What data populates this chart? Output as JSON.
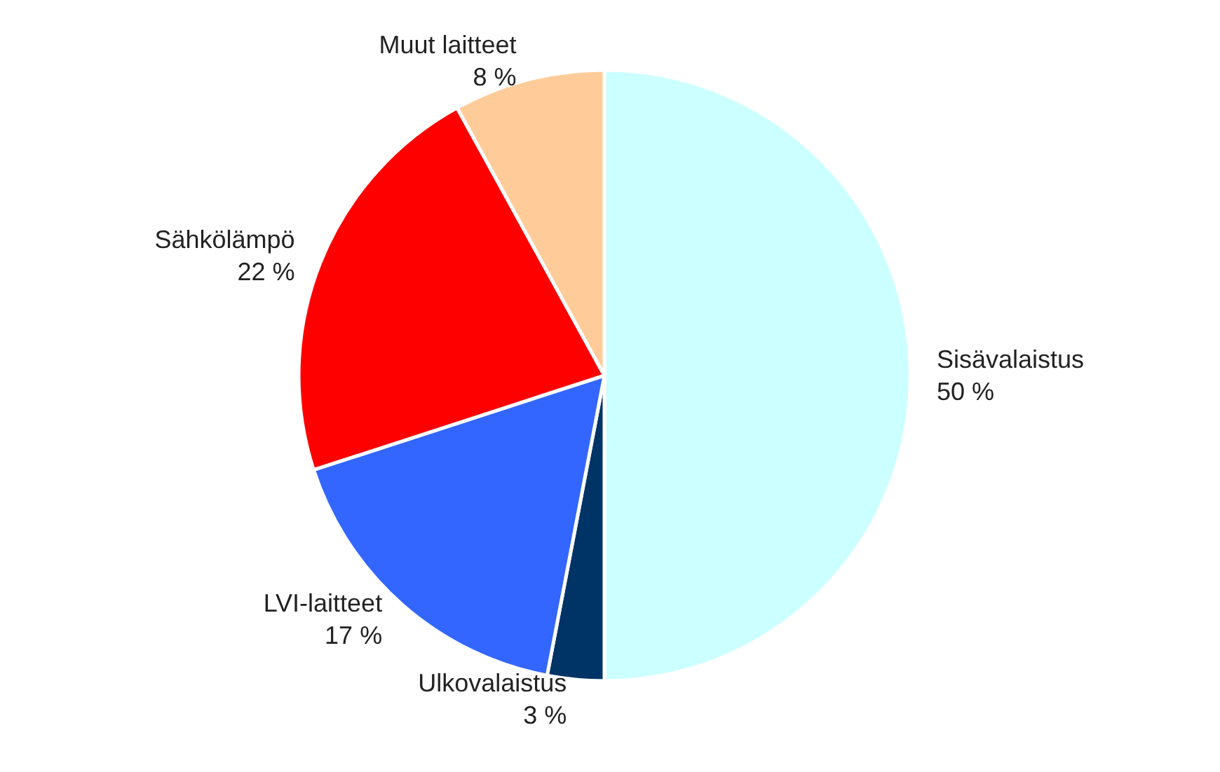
{
  "chart_data": {
    "type": "pie",
    "categories": [
      "Sisävalaistus",
      "Ulkovalaistus",
      "LVI-laitteet",
      "Sähkölämpö",
      "Muut laitteet"
    ],
    "values": [
      50,
      3,
      17,
      22,
      8
    ],
    "value_labels": [
      "50 %",
      "3 %",
      "17 %",
      "22 %",
      "8 %"
    ],
    "colors": [
      "#ccffff",
      "#003366",
      "#3366ff",
      "#ff0000",
      "#ffcc99"
    ]
  }
}
